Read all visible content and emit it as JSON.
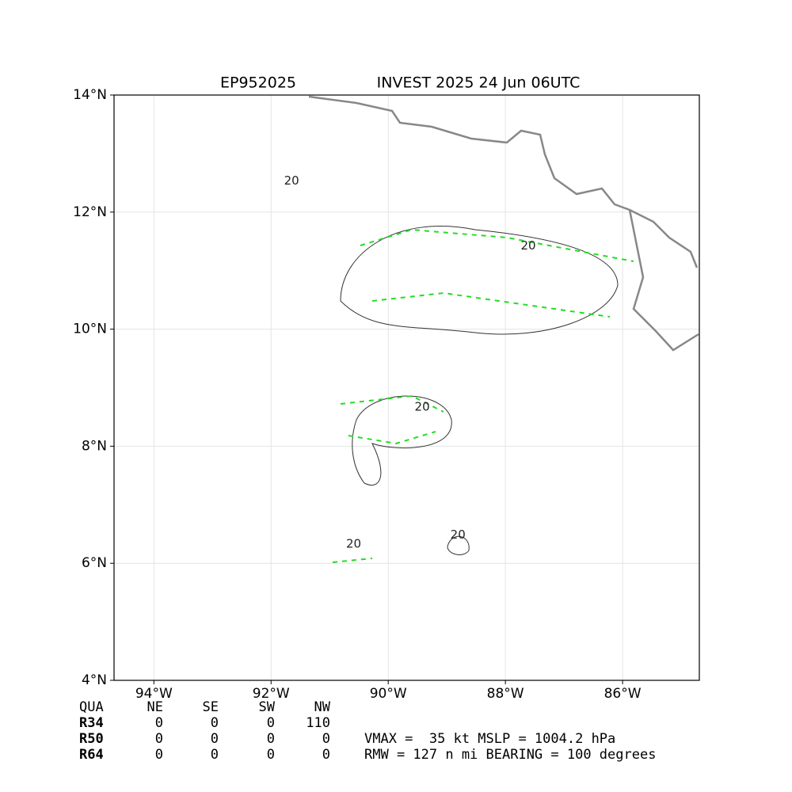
{
  "chart_data": {
    "type": "map",
    "title": "EP952025",
    "subtitle": "INVEST 2025 24 Jun 06UTC",
    "xlim": [
      -94.68,
      -84.69
    ],
    "ylim": [
      4,
      14
    ],
    "xticks": [
      {
        "value": -94,
        "label": "94°W"
      },
      {
        "value": -92,
        "label": "92°W"
      },
      {
        "value": -90,
        "label": "90°W"
      },
      {
        "value": -88,
        "label": "88°W"
      },
      {
        "value": -86,
        "label": "86°W"
      }
    ],
    "yticks": [
      {
        "value": 4,
        "label": "4°N"
      },
      {
        "value": 6,
        "label": "6°N"
      },
      {
        "value": 8,
        "label": "8°N"
      },
      {
        "value": 10,
        "label": "10°N"
      },
      {
        "value": 12,
        "label": "12°N"
      },
      {
        "value": 14,
        "label": "14°N"
      }
    ],
    "grid": true,
    "contour_labels": [
      {
        "value": 20,
        "lon": -87.61,
        "lat": 11.42
      },
      {
        "value": 20,
        "lon": -91.65,
        "lat": 12.53
      },
      {
        "value": 20,
        "lon": -90.59,
        "lat": 6.33
      },
      {
        "value": 20,
        "lon": -88.81,
        "lat": 6.48
      },
      {
        "value": 20,
        "lon": -89.42,
        "lat": 8.67
      }
    ]
  },
  "table": {
    "header": [
      "QUA",
      "NE",
      "SE",
      "SW",
      "NW"
    ],
    "rows": [
      [
        "R34",
        0,
        0,
        0,
        110
      ],
      [
        "R50",
        0,
        0,
        0,
        0
      ],
      [
        "R64",
        0,
        0,
        0,
        0
      ]
    ]
  },
  "summary": [
    "VMAX =  35 kt MSLP = 1004.2 hPa",
    "RMW = 127 n mi BEARING = 100 degrees"
  ]
}
